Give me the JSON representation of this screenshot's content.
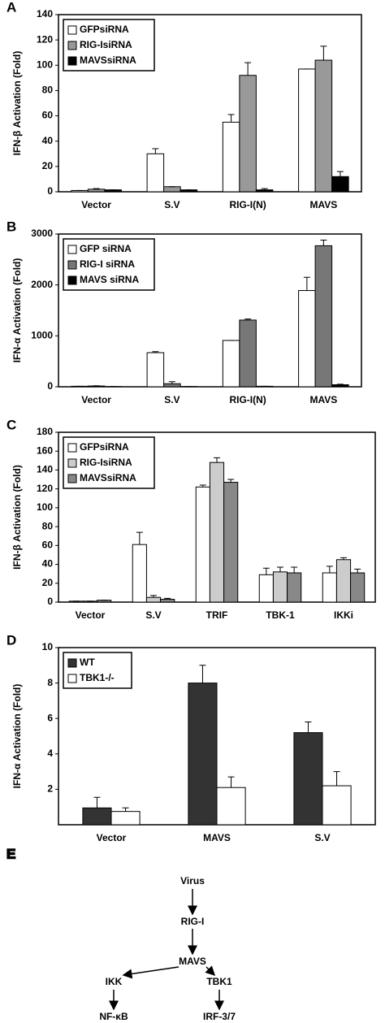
{
  "chart_data": [
    {
      "type": "bar",
      "panel_label": "A",
      "y_label": "IFN-β Activation (Fold)",
      "categories": [
        "Vector",
        "S.V",
        "RIG-I(N)",
        "MAVS"
      ],
      "series": [
        {
          "name": "GFPsiRNA",
          "color": "#ffffff",
          "values": [
            1,
            30,
            55,
            97
          ],
          "errors": [
            0,
            4,
            6,
            0
          ]
        },
        {
          "name": "RIG-IsiRNA",
          "color": "#999999",
          "values": [
            2,
            4,
            92,
            104
          ],
          "errors": [
            0.5,
            0,
            10,
            11
          ]
        },
        {
          "name": "MAVSsiRNA",
          "color": "#000000",
          "values": [
            1.5,
            1.5,
            1.5,
            12
          ],
          "errors": [
            0,
            0,
            1,
            4
          ]
        }
      ],
      "ylim": [
        0,
        140
      ],
      "yticks": [
        0,
        20,
        40,
        60,
        80,
        100,
        120,
        140
      ],
      "legend": "upper left"
    },
    {
      "type": "bar",
      "panel_label": "B",
      "y_label": "IFN-α Activation (Fold)",
      "categories": [
        "Vector",
        "S.V",
        "RIG-I(N)",
        "MAVS"
      ],
      "series": [
        {
          "name": "GFP siRNA",
          "color": "#ffffff",
          "values": [
            10,
            670,
            910,
            1890
          ],
          "errors": [
            0,
            20,
            0,
            260
          ]
        },
        {
          "name": "RIG-I siRNA",
          "color": "#777777",
          "values": [
            15,
            60,
            1310,
            2770
          ],
          "errors": [
            5,
            40,
            20,
            110
          ]
        },
        {
          "name": "MAVS siRNA",
          "color": "#000000",
          "values": [
            5,
            5,
            10,
            40
          ],
          "errors": [
            0,
            0,
            0,
            10
          ]
        }
      ],
      "ylim": [
        0,
        3000
      ],
      "yticks": [
        0,
        1000,
        2000,
        3000
      ],
      "legend": "upper left"
    },
    {
      "type": "bar",
      "panel_label": "C",
      "y_label": "IFN-β Activation (Fold)",
      "categories": [
        "Vector",
        "S.V",
        "TRIF",
        "TBK-1",
        "IKKi"
      ],
      "series": [
        {
          "name": "GFPsiRNA",
          "color": "#ffffff",
          "values": [
            1,
            61,
            122,
            29,
            31
          ],
          "errors": [
            0,
            13,
            2,
            7,
            7
          ]
        },
        {
          "name": "RIG-IsiRNA",
          "color": "#cccccc",
          "values": [
            1,
            5,
            148,
            32,
            45
          ],
          "errors": [
            0,
            2,
            5,
            5,
            2
          ]
        },
        {
          "name": "MAVSsiRNA",
          "color": "#888888",
          "values": [
            2,
            3,
            127,
            31,
            31
          ],
          "errors": [
            0,
            1,
            3,
            6,
            4
          ]
        }
      ],
      "ylim": [
        0,
        180
      ],
      "yticks": [
        0,
        20,
        40,
        60,
        80,
        100,
        120,
        140,
        160,
        180
      ],
      "legend": "upper left"
    },
    {
      "type": "bar",
      "panel_label": "D",
      "y_label": "IFN-α Activation (Fold)",
      "categories": [
        "Vector",
        "MAVS",
        "S.V"
      ],
      "series": [
        {
          "name": "WT",
          "color": "#333333",
          "values": [
            0.95,
            8.0,
            5.2
          ],
          "errors": [
            0.6,
            1.0,
            0.6
          ]
        },
        {
          "name": "TBK1-/-",
          "color": "#ffffff",
          "values": [
            0.75,
            2.1,
            2.2
          ],
          "errors": [
            0.2,
            0.6,
            0.8
          ]
        }
      ],
      "ylim": [
        0,
        10
      ],
      "yticks": [
        2,
        4,
        6,
        8,
        10
      ],
      "legend": "upper left"
    }
  ],
  "diagram": {
    "panel_label": "E",
    "nodes": [
      "Virus",
      "RIG-I",
      "MAVS",
      "IKK",
      "TBK1",
      "NF-κB",
      "IRF-3/7"
    ]
  }
}
